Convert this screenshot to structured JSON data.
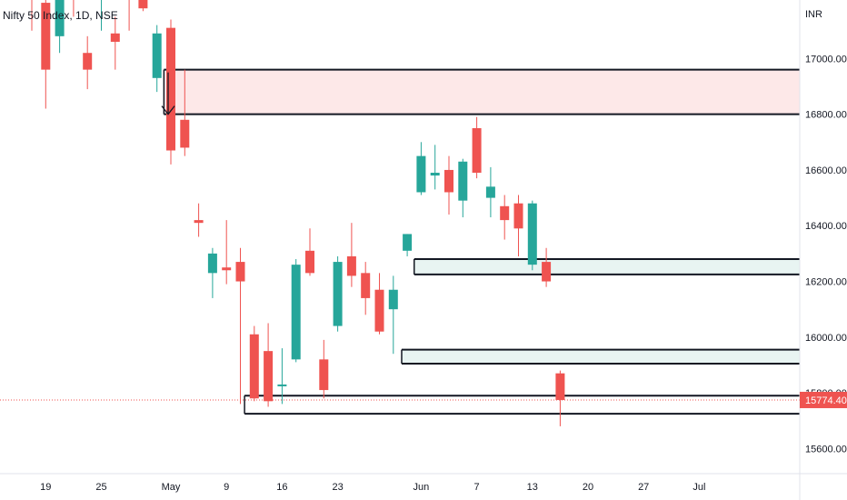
{
  "header": {
    "title": "Nifty 50 Index, 1D, NSE"
  },
  "price_axis": {
    "currency": "INR",
    "last_price_label": "15774.40"
  },
  "colors": {
    "up": "#26a69a",
    "down": "#ef5350",
    "zone_supply": "#fde8e8",
    "zone_demand": "#e8f4f2",
    "line": "#131722",
    "last_price": "#ef5350"
  },
  "chart_data": {
    "type": "candlestick",
    "ylim": [
      15510,
      17210
    ],
    "yticks": [
      "17000.00",
      "16800.00",
      "16600.00",
      "16400.00",
      "16200.00",
      "16000.00",
      "15800.00",
      "15600.00"
    ],
    "ytick_values": [
      17000,
      16800,
      16600,
      16400,
      16200,
      16000,
      15800,
      15600
    ],
    "xtick_labels": [
      "19",
      "25",
      "May",
      "9",
      "16",
      "23",
      "Jun",
      "7",
      "13",
      "20",
      "27",
      "Jul"
    ],
    "xtick_index": [
      1,
      5,
      10,
      14,
      18,
      22,
      28,
      32,
      36,
      40,
      44,
      48
    ],
    "last_price": 15774.4,
    "candles": [
      {
        "i": 0,
        "o": 17300,
        "h": 17400,
        "l": 17100,
        "c": 17250
      },
      {
        "i": 1,
        "o": 17200,
        "h": 17260,
        "l": 16820,
        "c": 16960
      },
      {
        "i": 2,
        "o": 17080,
        "h": 17280,
        "l": 17020,
        "c": 17210
      },
      {
        "i": 3,
        "o": 17300,
        "h": 17380,
        "l": 17150,
        "c": 17250
      },
      {
        "i": 4,
        "o": 17020,
        "h": 17080,
        "l": 16890,
        "c": 16960
      },
      {
        "i": 5,
        "o": 17220,
        "h": 17280,
        "l": 17100,
        "c": 17220
      },
      {
        "i": 6,
        "o": 17090,
        "h": 17150,
        "l": 16960,
        "c": 17060
      },
      {
        "i": 7,
        "o": 17300,
        "h": 17380,
        "l": 17100,
        "c": 17250
      },
      {
        "i": 8,
        "o": 17260,
        "h": 17310,
        "l": 17170,
        "c": 17180
      },
      {
        "i": 9,
        "o": 16930,
        "h": 17120,
        "l": 16880,
        "c": 17090
      },
      {
        "i": 10,
        "o": 17110,
        "h": 17140,
        "l": 16620,
        "c": 16670
      },
      {
        "i": 11,
        "o": 16780,
        "h": 16960,
        "l": 16650,
        "c": 16680
      },
      {
        "i": 12,
        "o": 16420,
        "h": 16480,
        "l": 16360,
        "c": 16410
      },
      {
        "i": 13,
        "o": 16230,
        "h": 16320,
        "l": 16140,
        "c": 16300
      },
      {
        "i": 14,
        "o": 16250,
        "h": 16420,
        "l": 16190,
        "c": 16240
      },
      {
        "i": 15,
        "o": 16270,
        "h": 16320,
        "l": 15760,
        "c": 16200
      },
      {
        "i": 16,
        "o": 16010,
        "h": 16040,
        "l": 15770,
        "c": 15780
      },
      {
        "i": 17,
        "o": 15950,
        "h": 16050,
        "l": 15750,
        "c": 15770
      },
      {
        "i": 18,
        "o": 15830,
        "h": 15960,
        "l": 15760,
        "c": 15830
      },
      {
        "i": 19,
        "o": 15920,
        "h": 16280,
        "l": 15910,
        "c": 16260
      },
      {
        "i": 20,
        "o": 16310,
        "h": 16390,
        "l": 16220,
        "c": 16230
      },
      {
        "i": 21,
        "o": 15920,
        "h": 15990,
        "l": 15780,
        "c": 15810
      },
      {
        "i": 22,
        "o": 16040,
        "h": 16290,
        "l": 16020,
        "c": 16270
      },
      {
        "i": 23,
        "o": 16290,
        "h": 16410,
        "l": 16180,
        "c": 16220
      },
      {
        "i": 24,
        "o": 16230,
        "h": 16270,
        "l": 16080,
        "c": 16140
      },
      {
        "i": 25,
        "o": 16170,
        "h": 16230,
        "l": 16010,
        "c": 16020
      },
      {
        "i": 26,
        "o": 16100,
        "h": 16220,
        "l": 15940,
        "c": 16170
      },
      {
        "i": 27,
        "o": 16310,
        "h": 16370,
        "l": 16290,
        "c": 16370
      },
      {
        "i": 28,
        "o": 16520,
        "h": 16700,
        "l": 16510,
        "c": 16650
      },
      {
        "i": 29,
        "o": 16580,
        "h": 16690,
        "l": 16530,
        "c": 16590
      },
      {
        "i": 30,
        "o": 16600,
        "h": 16650,
        "l": 16440,
        "c": 16520
      },
      {
        "i": 31,
        "o": 16490,
        "h": 16640,
        "l": 16430,
        "c": 16630
      },
      {
        "i": 32,
        "o": 16750,
        "h": 16790,
        "l": 16570,
        "c": 16590
      },
      {
        "i": 33,
        "o": 16500,
        "h": 16610,
        "l": 16430,
        "c": 16540
      },
      {
        "i": 34,
        "o": 16470,
        "h": 16510,
        "l": 16350,
        "c": 16420
      },
      {
        "i": 35,
        "o": 16480,
        "h": 16510,
        "l": 16290,
        "c": 16390
      },
      {
        "i": 36,
        "o": 16260,
        "h": 16490,
        "l": 16240,
        "c": 16480
      },
      {
        "i": 37,
        "o": 16270,
        "h": 16320,
        "l": 16180,
        "c": 16200
      },
      {
        "i": 38,
        "o": 15870,
        "h": 15880,
        "l": 15680,
        "c": 15774.4
      }
    ],
    "zones": [
      {
        "name": "supply-zone",
        "y_low": 16800,
        "y_high": 16960,
        "x_start": 9.5,
        "fill": "zone_supply"
      },
      {
        "name": "zone-16270",
        "y_low": 16225,
        "y_high": 16280,
        "x_start": 27.5,
        "fill": "zone_demand"
      },
      {
        "name": "zone-15930",
        "y_low": 15905,
        "y_high": 15955,
        "x_start": 26.6,
        "fill": "zone_demand"
      },
      {
        "name": "zone-15760",
        "y_low": 15725,
        "y_high": 15790,
        "x_start": 15.3,
        "fill": "none"
      }
    ],
    "arrow": {
      "x": 10,
      "from": 16950,
      "to": 16800
    }
  }
}
